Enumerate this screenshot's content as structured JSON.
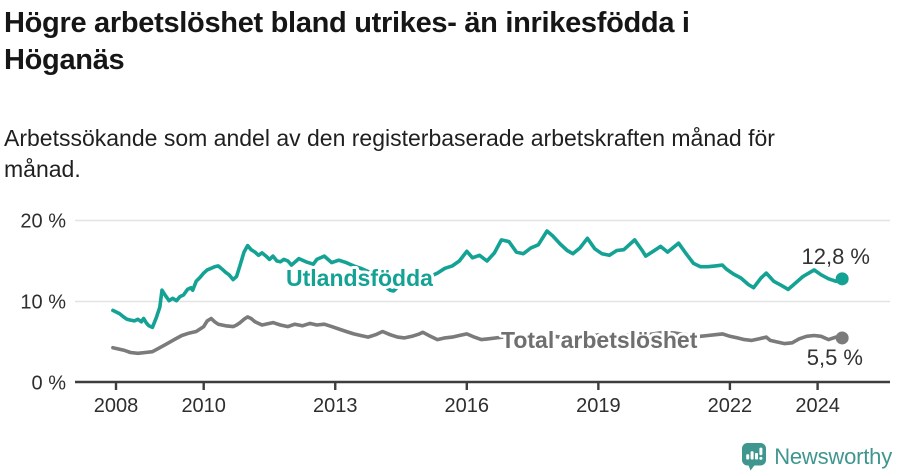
{
  "header": {
    "title": "Högre arbetslöshet bland utrikes- än inrikesfödda i Höganäs",
    "title_lines": [
      "Högre arbetslöshet bland utrikes- än inrikesfödda i",
      "Höganäs"
    ],
    "subtitle": "Arbetssökande som andel av den registerbaserade arbetskraften månad för månad.",
    "subtitle_lines": [
      "Arbetssökande som andel av den registerbaserade arbetskraften månad för",
      "månad."
    ]
  },
  "branding": {
    "name": "Newsworthy",
    "icon": "newsworthy-speech-bubble-chart-icon",
    "color": "#3f968f"
  },
  "colors": {
    "foreign_born_line": "#14a294",
    "total_line": "#7b7b7b",
    "total_label": "#6f6f6f",
    "axis": "#3d3d3d",
    "grid": "#e3e3e3",
    "tick_text": "#2e2e2e",
    "end_label_text": "#333333",
    "background": "#ffffff"
  },
  "chart_data": {
    "type": "line",
    "title": "Högre arbetslöshet bland utrikes- än inrikesfödda i Höganäs",
    "subtitle": "Arbetssökande som andel av den registerbaserade arbetskraften månad för månad.",
    "xlabel": "",
    "ylabel": "",
    "grid": "horizontal",
    "legend_position": "inline-labels",
    "x_axis": {
      "range": [
        2007.05,
        2025.65
      ],
      "ticks": [
        2008,
        2010,
        2013,
        2016,
        2019,
        2022,
        2024
      ]
    },
    "y_axis": {
      "range": [
        0,
        22
      ],
      "ticks": [
        {
          "value": 0,
          "label": "0 %"
        },
        {
          "value": 10,
          "label": "10 %"
        },
        {
          "value": 20,
          "label": "20 %"
        }
      ]
    },
    "series": [
      {
        "name": "Utlandsfödda",
        "end_label": "12,8 %",
        "end_value": 12.8,
        "points": [
          [
            2007.93,
            8.9
          ],
          [
            2008.08,
            8.5
          ],
          [
            2008.17,
            8.1
          ],
          [
            2008.25,
            7.8
          ],
          [
            2008.33,
            7.7
          ],
          [
            2008.42,
            7.6
          ],
          [
            2008.5,
            7.8
          ],
          [
            2008.58,
            7.5
          ],
          [
            2008.63,
            7.9
          ],
          [
            2008.7,
            7.3
          ],
          [
            2008.75,
            7.0
          ],
          [
            2008.83,
            6.8
          ],
          [
            2008.92,
            8.0
          ],
          [
            2009.0,
            9.3
          ],
          [
            2009.05,
            11.4
          ],
          [
            2009.13,
            10.7
          ],
          [
            2009.21,
            10.1
          ],
          [
            2009.29,
            10.4
          ],
          [
            2009.38,
            10.1
          ],
          [
            2009.46,
            10.6
          ],
          [
            2009.54,
            10.8
          ],
          [
            2009.63,
            11.5
          ],
          [
            2009.71,
            11.7
          ],
          [
            2009.75,
            11.4
          ],
          [
            2009.83,
            12.5
          ],
          [
            2009.92,
            13.0
          ],
          [
            2010.0,
            13.5
          ],
          [
            2010.08,
            13.9
          ],
          [
            2010.17,
            14.1
          ],
          [
            2010.25,
            14.3
          ],
          [
            2010.33,
            14.4
          ],
          [
            2010.42,
            14.0
          ],
          [
            2010.5,
            13.6
          ],
          [
            2010.58,
            13.3
          ],
          [
            2010.67,
            12.7
          ],
          [
            2010.75,
            13.1
          ],
          [
            2010.83,
            14.5
          ],
          [
            2010.92,
            16.1
          ],
          [
            2011.0,
            16.9
          ],
          [
            2011.08,
            16.4
          ],
          [
            2011.17,
            16.1
          ],
          [
            2011.25,
            15.7
          ],
          [
            2011.33,
            16.0
          ],
          [
            2011.42,
            15.6
          ],
          [
            2011.5,
            15.2
          ],
          [
            2011.58,
            15.6
          ],
          [
            2011.67,
            15.0
          ],
          [
            2011.75,
            14.9
          ],
          [
            2011.83,
            15.2
          ],
          [
            2011.92,
            15.0
          ],
          [
            2012.0,
            14.5
          ],
          [
            2012.17,
            15.3
          ],
          [
            2012.33,
            14.9
          ],
          [
            2012.5,
            14.6
          ],
          [
            2012.58,
            15.2
          ],
          [
            2012.75,
            15.6
          ],
          [
            2012.92,
            14.8
          ],
          [
            2013.08,
            15.1
          ],
          [
            2013.25,
            14.8
          ],
          [
            2013.42,
            14.4
          ],
          [
            2013.58,
            14.1
          ],
          [
            2013.75,
            13.7
          ],
          [
            2013.92,
            12.9
          ],
          [
            2014.08,
            12.1
          ],
          [
            2014.25,
            11.4
          ],
          [
            2014.33,
            11.3
          ],
          [
            2014.5,
            12.2
          ],
          [
            2014.67,
            12.0
          ],
          [
            2014.83,
            12.6
          ],
          [
            2015.0,
            12.9
          ],
          [
            2015.17,
            13.1
          ],
          [
            2015.33,
            13.5
          ],
          [
            2015.5,
            14.1
          ],
          [
            2015.67,
            14.4
          ],
          [
            2015.83,
            15.0
          ],
          [
            2016.0,
            16.2
          ],
          [
            2016.13,
            15.4
          ],
          [
            2016.29,
            15.7
          ],
          [
            2016.46,
            15.0
          ],
          [
            2016.63,
            16.0
          ],
          [
            2016.79,
            17.6
          ],
          [
            2016.96,
            17.4
          ],
          [
            2017.13,
            16.1
          ],
          [
            2017.29,
            15.9
          ],
          [
            2017.46,
            16.6
          ],
          [
            2017.63,
            17.0
          ],
          [
            2017.83,
            18.7
          ],
          [
            2017.96,
            18.1
          ],
          [
            2018.13,
            17.1
          ],
          [
            2018.29,
            16.3
          ],
          [
            2018.42,
            15.9
          ],
          [
            2018.58,
            16.6
          ],
          [
            2018.75,
            17.8
          ],
          [
            2018.92,
            16.5
          ],
          [
            2019.08,
            15.9
          ],
          [
            2019.25,
            15.7
          ],
          [
            2019.42,
            16.3
          ],
          [
            2019.58,
            16.4
          ],
          [
            2019.83,
            17.6
          ],
          [
            2020.0,
            16.3
          ],
          [
            2020.08,
            15.6
          ],
          [
            2020.25,
            16.2
          ],
          [
            2020.42,
            16.8
          ],
          [
            2020.58,
            16.1
          ],
          [
            2020.83,
            17.2
          ],
          [
            2021.0,
            15.9
          ],
          [
            2021.17,
            14.7
          ],
          [
            2021.33,
            14.3
          ],
          [
            2021.5,
            14.3
          ],
          [
            2021.67,
            14.4
          ],
          [
            2021.83,
            14.5
          ],
          [
            2021.92,
            14.0
          ],
          [
            2022.08,
            13.4
          ],
          [
            2022.25,
            12.9
          ],
          [
            2022.42,
            12.1
          ],
          [
            2022.54,
            11.7
          ],
          [
            2022.71,
            12.9
          ],
          [
            2022.83,
            13.5
          ],
          [
            2023.0,
            12.5
          ],
          [
            2023.17,
            12.0
          ],
          [
            2023.33,
            11.5
          ],
          [
            2023.5,
            12.3
          ],
          [
            2023.67,
            13.1
          ],
          [
            2023.92,
            13.9
          ],
          [
            2024.08,
            13.3
          ],
          [
            2024.25,
            12.8
          ],
          [
            2024.42,
            12.5
          ],
          [
            2024.56,
            12.8
          ]
        ]
      },
      {
        "name": "Total arbetslöshet",
        "end_label": "5,5 %",
        "end_value": 5.5,
        "points": [
          [
            2007.93,
            4.3
          ],
          [
            2008.17,
            4.0
          ],
          [
            2008.33,
            3.7
          ],
          [
            2008.5,
            3.6
          ],
          [
            2008.67,
            3.7
          ],
          [
            2008.83,
            3.8
          ],
          [
            2009.0,
            4.3
          ],
          [
            2009.17,
            4.8
          ],
          [
            2009.33,
            5.3
          ],
          [
            2009.5,
            5.8
          ],
          [
            2009.67,
            6.1
          ],
          [
            2009.83,
            6.3
          ],
          [
            2010.0,
            6.9
          ],
          [
            2010.08,
            7.6
          ],
          [
            2010.17,
            7.9
          ],
          [
            2010.25,
            7.5
          ],
          [
            2010.33,
            7.2
          ],
          [
            2010.5,
            7.0
          ],
          [
            2010.67,
            6.9
          ],
          [
            2010.75,
            7.1
          ],
          [
            2010.83,
            7.4
          ],
          [
            2010.92,
            7.8
          ],
          [
            2011.0,
            8.1
          ],
          [
            2011.08,
            7.9
          ],
          [
            2011.17,
            7.5
          ],
          [
            2011.33,
            7.1
          ],
          [
            2011.5,
            7.3
          ],
          [
            2011.58,
            7.4
          ],
          [
            2011.75,
            7.1
          ],
          [
            2011.92,
            6.9
          ],
          [
            2012.08,
            7.2
          ],
          [
            2012.25,
            7.0
          ],
          [
            2012.42,
            7.3
          ],
          [
            2012.58,
            7.1
          ],
          [
            2012.75,
            7.2
          ],
          [
            2012.92,
            6.9
          ],
          [
            2013.08,
            6.6
          ],
          [
            2013.25,
            6.3
          ],
          [
            2013.42,
            6.0
          ],
          [
            2013.58,
            5.8
          ],
          [
            2013.75,
            5.6
          ],
          [
            2013.92,
            5.9
          ],
          [
            2014.08,
            6.3
          ],
          [
            2014.25,
            5.9
          ],
          [
            2014.42,
            5.6
          ],
          [
            2014.58,
            5.5
          ],
          [
            2014.75,
            5.7
          ],
          [
            2014.92,
            6.0
          ],
          [
            2015.0,
            6.2
          ],
          [
            2015.17,
            5.7
          ],
          [
            2015.33,
            5.3
          ],
          [
            2015.5,
            5.5
          ],
          [
            2015.67,
            5.6
          ],
          [
            2015.83,
            5.8
          ],
          [
            2016.0,
            6.0
          ],
          [
            2016.17,
            5.6
          ],
          [
            2016.33,
            5.3
          ],
          [
            2016.5,
            5.4
          ],
          [
            2016.67,
            5.5
          ],
          [
            2016.83,
            5.6
          ],
          [
            2017.0,
            5.8
          ],
          [
            2017.25,
            5.6
          ],
          [
            2017.5,
            5.5
          ],
          [
            2017.75,
            5.6
          ],
          [
            2018.0,
            5.7
          ],
          [
            2018.25,
            5.5
          ],
          [
            2018.5,
            5.4
          ],
          [
            2018.75,
            5.6
          ],
          [
            2019.0,
            5.9
          ],
          [
            2019.25,
            5.7
          ],
          [
            2019.5,
            5.8
          ],
          [
            2019.75,
            5.9
          ],
          [
            2020.0,
            5.8
          ],
          [
            2020.25,
            6.0
          ],
          [
            2020.5,
            6.2
          ],
          [
            2020.75,
            6.1
          ],
          [
            2021.0,
            5.9
          ],
          [
            2021.17,
            5.6
          ],
          [
            2021.33,
            5.7
          ],
          [
            2021.5,
            5.8
          ],
          [
            2021.67,
            5.9
          ],
          [
            2021.83,
            6.0
          ],
          [
            2022.0,
            5.7
          ],
          [
            2022.17,
            5.5
          ],
          [
            2022.33,
            5.3
          ],
          [
            2022.5,
            5.2
          ],
          [
            2022.67,
            5.4
          ],
          [
            2022.83,
            5.6
          ],
          [
            2022.92,
            5.2
          ],
          [
            2023.08,
            5.0
          ],
          [
            2023.25,
            4.8
          ],
          [
            2023.42,
            4.9
          ],
          [
            2023.58,
            5.4
          ],
          [
            2023.75,
            5.7
          ],
          [
            2023.92,
            5.8
          ],
          [
            2024.08,
            5.7
          ],
          [
            2024.25,
            5.3
          ],
          [
            2024.42,
            5.6
          ],
          [
            2024.56,
            5.5
          ]
        ]
      }
    ]
  }
}
